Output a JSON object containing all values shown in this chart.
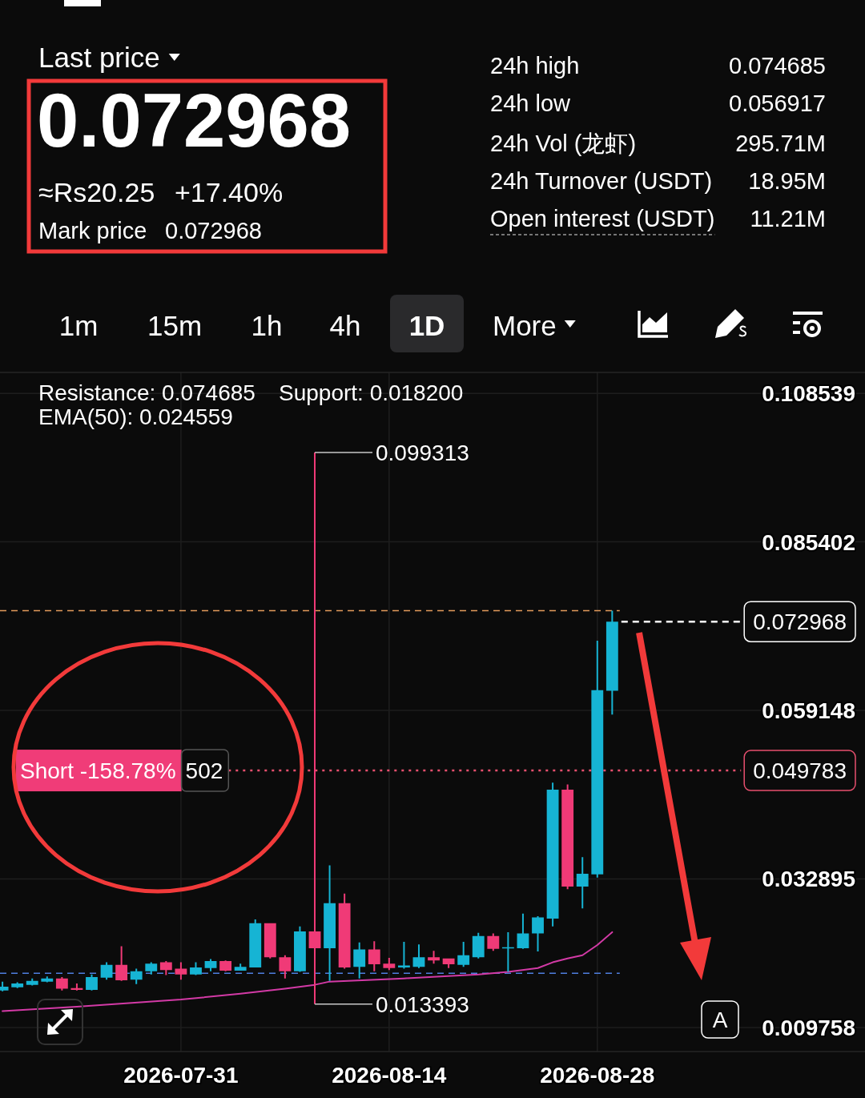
{
  "chart_data": [
    {
      "type": "other",
      "annotations": [
        "Last price",
        "0.072968",
        "≈Rs20.25",
        "+17.40%",
        "Mark price",
        "0.072968",
        "24h high",
        "0.074685",
        "24h low",
        "0.056917",
        "24h Vol (龙虾)",
        "295.71M",
        "24h Turnover (USDT)",
        "18.95M",
        "Open interest (USDT)",
        "11.21M",
        "1m",
        "15m",
        "1h",
        "4h",
        "1D",
        "More"
      ]
    },
    {
      "type": "candlestick",
      "x": [
        "2026-07-19",
        "2026-07-20",
        "2026-07-21",
        "2026-07-22",
        "2026-07-23",
        "2026-07-24",
        "2026-07-25",
        "2026-07-26",
        "2026-07-27",
        "2026-07-28",
        "2026-07-29",
        "2026-07-30",
        "2026-07-31",
        "2026-08-01",
        "2026-08-02",
        "2026-08-03",
        "2026-08-04",
        "2026-08-05",
        "2026-08-06",
        "2026-08-07",
        "2026-08-08",
        "2026-08-09",
        "2026-08-10",
        "2026-08-11",
        "2026-08-12",
        "2026-08-13",
        "2026-08-14",
        "2026-08-15",
        "2026-08-16",
        "2026-08-17",
        "2026-08-18",
        "2026-08-19",
        "2026-08-20",
        "2026-08-21",
        "2026-08-22",
        "2026-08-23",
        "2026-08-24",
        "2026-08-25",
        "2026-08-26",
        "2026-08-27",
        "2026-08-28",
        "2026-08-29"
      ],
      "ohlc": [
        [
          0.0155,
          0.0169,
          0.0154,
          0.0161
        ],
        [
          0.016,
          0.0168,
          0.0159,
          0.0166
        ],
        [
          0.0164,
          0.0174,
          0.0163,
          0.017
        ],
        [
          0.0169,
          0.0177,
          0.0168,
          0.0174
        ],
        [
          0.0174,
          0.0176,
          0.0155,
          0.0158
        ],
        [
          0.0159,
          0.0166,
          0.0155,
          0.0156
        ],
        [
          0.0156,
          0.018,
          0.0155,
          0.0176
        ],
        [
          0.0175,
          0.0199,
          0.0172,
          0.0195
        ],
        [
          0.0195,
          0.0224,
          0.017,
          0.0171
        ],
        [
          0.0172,
          0.0189,
          0.0165,
          0.0185
        ],
        [
          0.0185,
          0.0199,
          0.018,
          0.0197
        ],
        [
          0.0199,
          0.0201,
          0.0179,
          0.0187
        ],
        [
          0.0189,
          0.0199,
          0.0172,
          0.018
        ],
        [
          0.018,
          0.0199,
          0.0179,
          0.0191
        ],
        [
          0.019,
          0.0204,
          0.0185,
          0.0201
        ],
        [
          0.0201,
          0.0202,
          0.0185,
          0.0186
        ],
        [
          0.0186,
          0.0197,
          0.0186,
          0.0192
        ],
        [
          0.0191,
          0.0266,
          0.0191,
          0.026
        ],
        [
          0.026,
          0.026,
          0.0205,
          0.0207
        ],
        [
          0.0207,
          0.021,
          0.0174,
          0.0185
        ],
        [
          0.0185,
          0.0255,
          0.0184,
          0.0247
        ],
        [
          0.0247,
          0.099313,
          0.013393,
          0.0221
        ],
        [
          0.0221,
          0.035,
          0.017,
          0.0291
        ],
        [
          0.0291,
          0.0306,
          0.0189,
          0.0191
        ],
        [
          0.0192,
          0.023,
          0.0174,
          0.0219
        ],
        [
          0.0219,
          0.0232,
          0.0185,
          0.0196
        ],
        [
          0.0197,
          0.0206,
          0.0187,
          0.019
        ],
        [
          0.0191,
          0.0231,
          0.0189,
          0.0194
        ],
        [
          0.0192,
          0.0227,
          0.019,
          0.0207
        ],
        [
          0.0207,
          0.0217,
          0.0197,
          0.0202
        ],
        [
          0.0205,
          0.0205,
          0.019,
          0.0196
        ],
        [
          0.0195,
          0.0231,
          0.0192,
          0.021
        ],
        [
          0.0207,
          0.0245,
          0.0205,
          0.024
        ],
        [
          0.024,
          0.0244,
          0.0217,
          0.022
        ],
        [
          0.0221,
          0.0246,
          0.0184,
          0.0222
        ],
        [
          0.0221,
          0.0275,
          0.022,
          0.0244
        ],
        [
          0.0244,
          0.0271,
          0.0216,
          0.0269
        ],
        [
          0.0267,
          0.0479,
          0.0255,
          0.0468
        ],
        [
          0.0468,
          0.0476,
          0.0313,
          0.0317
        ],
        [
          0.0317,
          0.0363,
          0.0283,
          0.0337
        ],
        [
          0.0336,
          0.07,
          0.0331,
          0.0623
        ],
        [
          0.0622,
          0.074685,
          0.0585,
          0.072968
        ]
      ],
      "colors": [
        "#16b4d4",
        "#16b4d4",
        "#16b4d4",
        "#16b4d4",
        "#f03a77",
        "#f03a77",
        "#16b4d4",
        "#16b4d4",
        "#f03a77",
        "#16b4d4",
        "#16b4d4",
        "#f03a77",
        "#f03a77",
        "#16b4d4",
        "#16b4d4",
        "#f03a77",
        "#16b4d4",
        "#16b4d4",
        "#f03a77",
        "#f03a77",
        "#16b4d4",
        "#f03a77",
        "#16b4d4",
        "#f03a77",
        "#16b4d4",
        "#f03a77",
        "#f03a77",
        "#16b4d4",
        "#16b4d4",
        "#f03a77",
        "#f03a77",
        "#16b4d4",
        "#16b4d4",
        "#f03a77",
        "#16b4d4",
        "#16b4d4",
        "#16b4d4",
        "#16b4d4",
        "#f03a77",
        "#16b4d4",
        "#16b4d4",
        "#16b4d4"
      ],
      "series": [
        {
          "type": "line",
          "color": "#d33aa6",
          "x": [
            "2026-07-19",
            "2026-07-24",
            "2026-07-31",
            "2026-08-04",
            "2026-08-07",
            "2026-08-09",
            "2026-08-10",
            "2026-08-15",
            "2026-08-20",
            "2026-08-22",
            "2026-08-24",
            "2026-08-25",
            "2026-08-26",
            "2026-08-27",
            "2026-08-28",
            "2026-08-29"
          ],
          "values": [
            0.0123,
            0.013,
            0.0141,
            0.015,
            0.0158,
            0.0164,
            0.0169,
            0.0174,
            0.018,
            0.0184,
            0.019,
            0.0199,
            0.0205,
            0.021,
            0.0226,
            0.0246
          ]
        }
      ],
      "xlim": [
        "2026-07-18T20:00",
        "2026-09-15"
      ],
      "xticks": [
        "2026-07-31",
        "2026-08-14",
        "2026-08-28"
      ],
      "ylim": [
        0.006,
        0.1118
      ],
      "yticks": [
        0.108539,
        0.085402,
        0.059148,
        0.032895,
        0.009758
      ],
      "grid": true,
      "ref_lines": [
        {
          "axis": "y",
          "value": 0.074685,
          "color": "#e39b5b",
          "line_style": "dashed"
        },
        {
          "axis": "y",
          "value": 0.0182,
          "color": "#4f7fe0",
          "line_style": "dashed"
        },
        {
          "axis": "y",
          "value": 0.072968,
          "label": "0.072968",
          "color": "#ffffff",
          "line_style": "dashed"
        },
        {
          "axis": "y",
          "value": 0.049783,
          "label": "0.049783",
          "color": "#e8506f",
          "line_style": "dotted"
        }
      ],
      "annotations": [
        "Resistance: 0.074685",
        "Support: 0.018200",
        "EMA(50): 0.024559",
        {
          "text": "0.099313",
          "x": "2026-08-09",
          "y": 0.099313
        },
        {
          "text": "0.013393",
          "x": "2026-08-09",
          "y": 0.013393
        },
        "Short -158.78%",
        "502",
        "A"
      ]
    }
  ]
}
